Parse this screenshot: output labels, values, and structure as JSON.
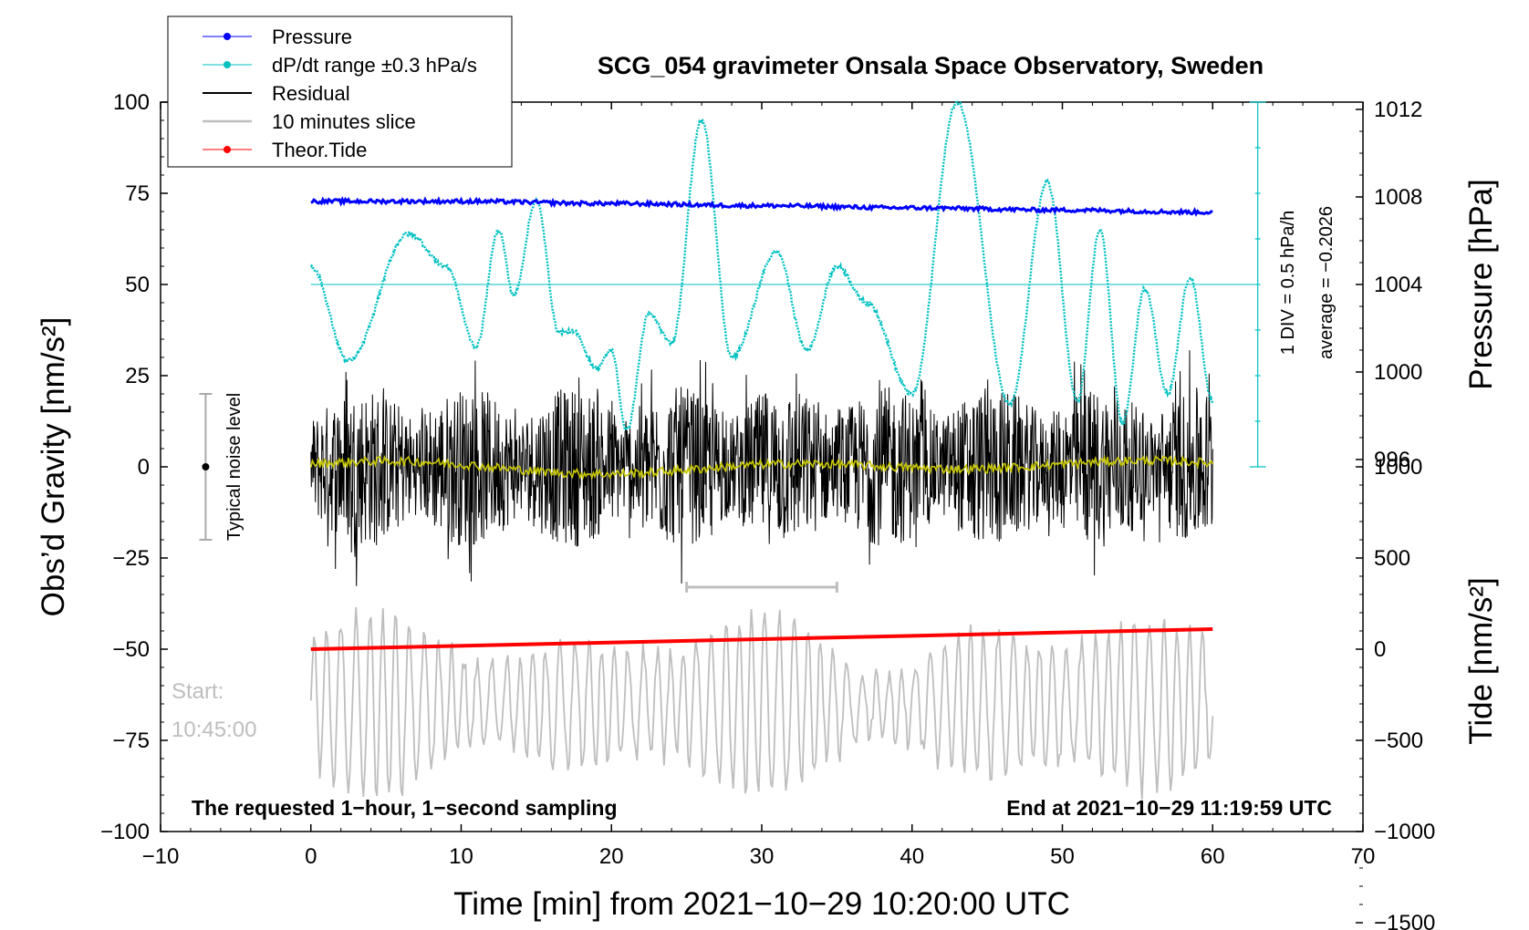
{
  "chart_data": {
    "type": "line",
    "title": "SCG_054 gravimeter Onsala Space Observatory, Sweden",
    "xlabel": "Time [min] from 2021−10−29 10:20:00 UTC",
    "ylabel_left": "Obs’d Gravity [nm/s²]",
    "ylabel_right_top": "Pressure [hPa]",
    "ylabel_right_bottom": "Tide [nm/s²]",
    "xlim": [
      -10,
      70
    ],
    "ylim_left": [
      -100,
      100
    ],
    "xticks": [
      "−10",
      "0",
      "10",
      "20",
      "30",
      "40",
      "50",
      "60",
      "70"
    ],
    "xtick_values": [
      -10,
      0,
      10,
      20,
      30,
      40,
      50,
      60,
      70
    ],
    "yticks_left": [
      "100",
      "75",
      "50",
      "25",
      "0",
      "−25",
      "−50",
      "−75",
      "−100"
    ],
    "ytick_left_values": [
      100,
      75,
      50,
      25,
      0,
      -25,
      -50,
      -75,
      -100
    ],
    "pressure_axis": {
      "ticks": [
        "1012",
        "1008",
        "1004",
        "1000",
        "996"
      ],
      "tick_values": [
        1012,
        1008,
        1004,
        1000,
        996
      ],
      "gravity_at_1004": 50,
      "gravity_per_hpa": 6.0
    },
    "tide_axis": {
      "ticks": [
        "1000",
        "500",
        "0",
        "−500",
        "−1000",
        "−1500"
      ],
      "tick_values": [
        1000,
        500,
        0,
        -500,
        -1000,
        -1500
      ],
      "gravity_at_0": -50,
      "gravity_per_unit": 0.05
    },
    "legend": [
      {
        "label": "Pressure",
        "color": "#0000ff",
        "marker": true
      },
      {
        "label": "dP/dt range ±0.3 hPa/s",
        "color": "#00c0c0",
        "marker": true
      },
      {
        "label": "Residual",
        "color": "#000000",
        "marker": false
      },
      {
        "label": "10 minutes slice",
        "color": "#bebebe",
        "marker": false
      },
      {
        "label": "Theor.Tide",
        "color": "#ff0000",
        "marker": true
      }
    ],
    "annotations": {
      "noise": "Typical noise level",
      "noise_range": [
        -20,
        20
      ],
      "noise_x": -7,
      "div": "1 DIV = 0.5 hPa/h",
      "average": "average = −0.2026",
      "start_label": "Start:",
      "start_time": "10:45:00",
      "footer_left": "The requested 1−hour, 1−second sampling",
      "footer_right": "End at 2021−10−29 11:19:59 UTC",
      "slice_range": [
        25,
        35
      ],
      "slice_y": -33,
      "dpdt_ref_line_y": 50,
      "dpdt_scale_x": 63,
      "dpdt_scale_range": [
        0,
        100
      ]
    },
    "series": [
      {
        "name": "Pressure",
        "color": "#0000ff",
        "unit": "hPa",
        "x": [
          0,
          10,
          20,
          30,
          40,
          50,
          60
        ],
        "values": [
          1007.8,
          1007.8,
          1007.7,
          1007.6,
          1007.5,
          1007.4,
          1007.3
        ]
      },
      {
        "name": "dP/dt",
        "color": "#00c0c0",
        "unit": "nm/s² (plot units)",
        "x": [
          0,
          2.5,
          6.5,
          9,
          11,
          12.5,
          13.5,
          15,
          16.5,
          17.5,
          19,
          20,
          21,
          22.5,
          24,
          26,
          28,
          31,
          33,
          35,
          37,
          40,
          43,
          46.5,
          49,
          51,
          52.5,
          54,
          55.5,
          57,
          58.5,
          60
        ],
        "values": [
          55,
          29,
          64,
          55,
          33,
          65,
          47,
          73,
          37,
          37,
          27,
          32,
          10,
          42,
          34,
          95,
          30,
          59,
          32,
          55,
          45,
          20,
          100,
          17,
          78,
          18,
          65,
          12,
          49,
          20,
          52,
          18
        ]
      },
      {
        "name": "Residual",
        "color": "#000000",
        "amplitude": 22
      },
      {
        "name": "Residual smoothed",
        "color": "#c8c800",
        "amplitude": 2
      },
      {
        "name": "10 minutes slice",
        "color": "#bebebe",
        "center": -65,
        "amplitude": 20
      },
      {
        "name": "Theor.Tide",
        "color": "#ff0000",
        "unit": "nm/s²",
        "x": [
          0,
          60
        ],
        "values": [
          0,
          110
        ]
      }
    ]
  }
}
